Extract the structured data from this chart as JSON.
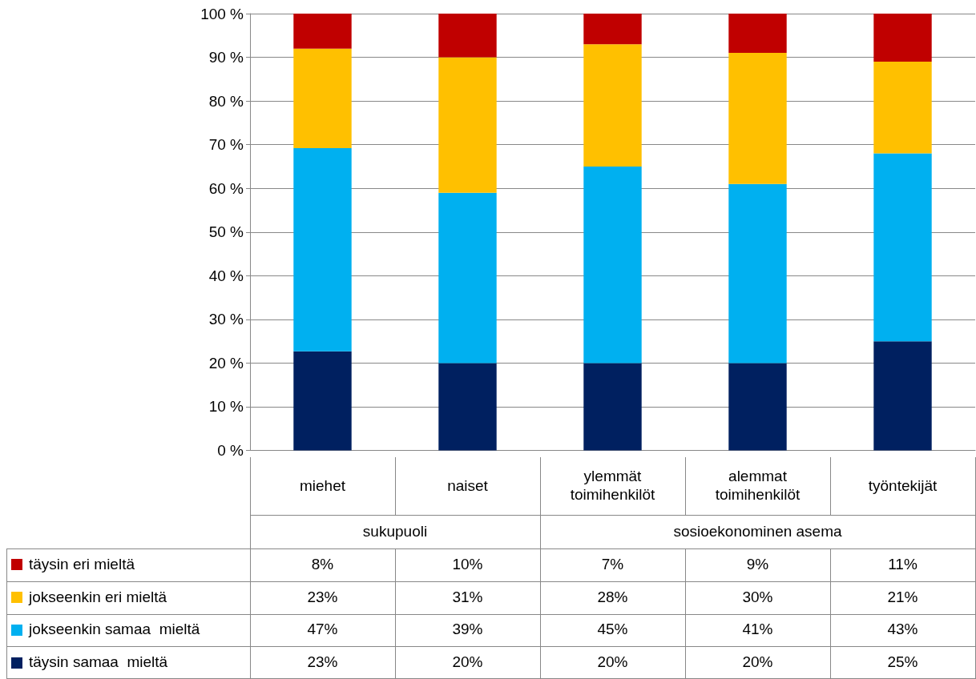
{
  "chart_data": {
    "type": "bar",
    "stacked": true,
    "categories": [
      "miehet",
      "naiset",
      "ylemmät toimihenkilöt",
      "alemmat toimihenkilöt",
      "työntekijät"
    ],
    "series": [
      {
        "name": "täysin samaa  mieltä",
        "color": "#002060",
        "values": [
          22.7,
          20,
          20,
          20,
          25
        ],
        "value_labels": [
          "23%",
          "20%",
          "20%",
          "20%",
          "25%"
        ]
      },
      {
        "name": "jokseenkin samaa  mieltä",
        "color": "#00b0f0",
        "values": [
          46.5,
          39,
          45,
          41,
          43
        ],
        "value_labels": [
          "47%",
          "39%",
          "45%",
          "41%",
          "43%"
        ]
      },
      {
        "name": "jokseenkin eri mieltä",
        "color": "#ffc000",
        "values": [
          22.8,
          31,
          28,
          30,
          21
        ],
        "value_labels": [
          "23%",
          "31%",
          "28%",
          "30%",
          "21%"
        ]
      },
      {
        "name": "täysin eri mieltä",
        "color": "#c00000",
        "values": [
          8,
          10,
          7,
          9,
          11
        ],
        "value_labels": [
          "8%",
          "10%",
          "7%",
          "9%",
          "11%"
        ]
      }
    ],
    "ylim": [
      0,
      100
    ],
    "yticks": [
      {
        "value": 0,
        "label": "0 %"
      },
      {
        "value": 10,
        "label": "10 %"
      },
      {
        "value": 20,
        "label": "20 %"
      },
      {
        "value": 30,
        "label": "30 %"
      },
      {
        "value": 40,
        "label": "40 %"
      },
      {
        "value": 50,
        "label": "50 %"
      },
      {
        "value": 60,
        "label": "60 %"
      },
      {
        "value": 70,
        "label": "70 %"
      },
      {
        "value": 80,
        "label": "80 %"
      },
      {
        "value": 90,
        "label": "90 %"
      },
      {
        "value": 100,
        "label": "100 %"
      }
    ],
    "grid": "y",
    "legend": "bottom left",
    "annotations": [
      "sukupuoli",
      "sosioekonominen asema"
    ]
  }
}
